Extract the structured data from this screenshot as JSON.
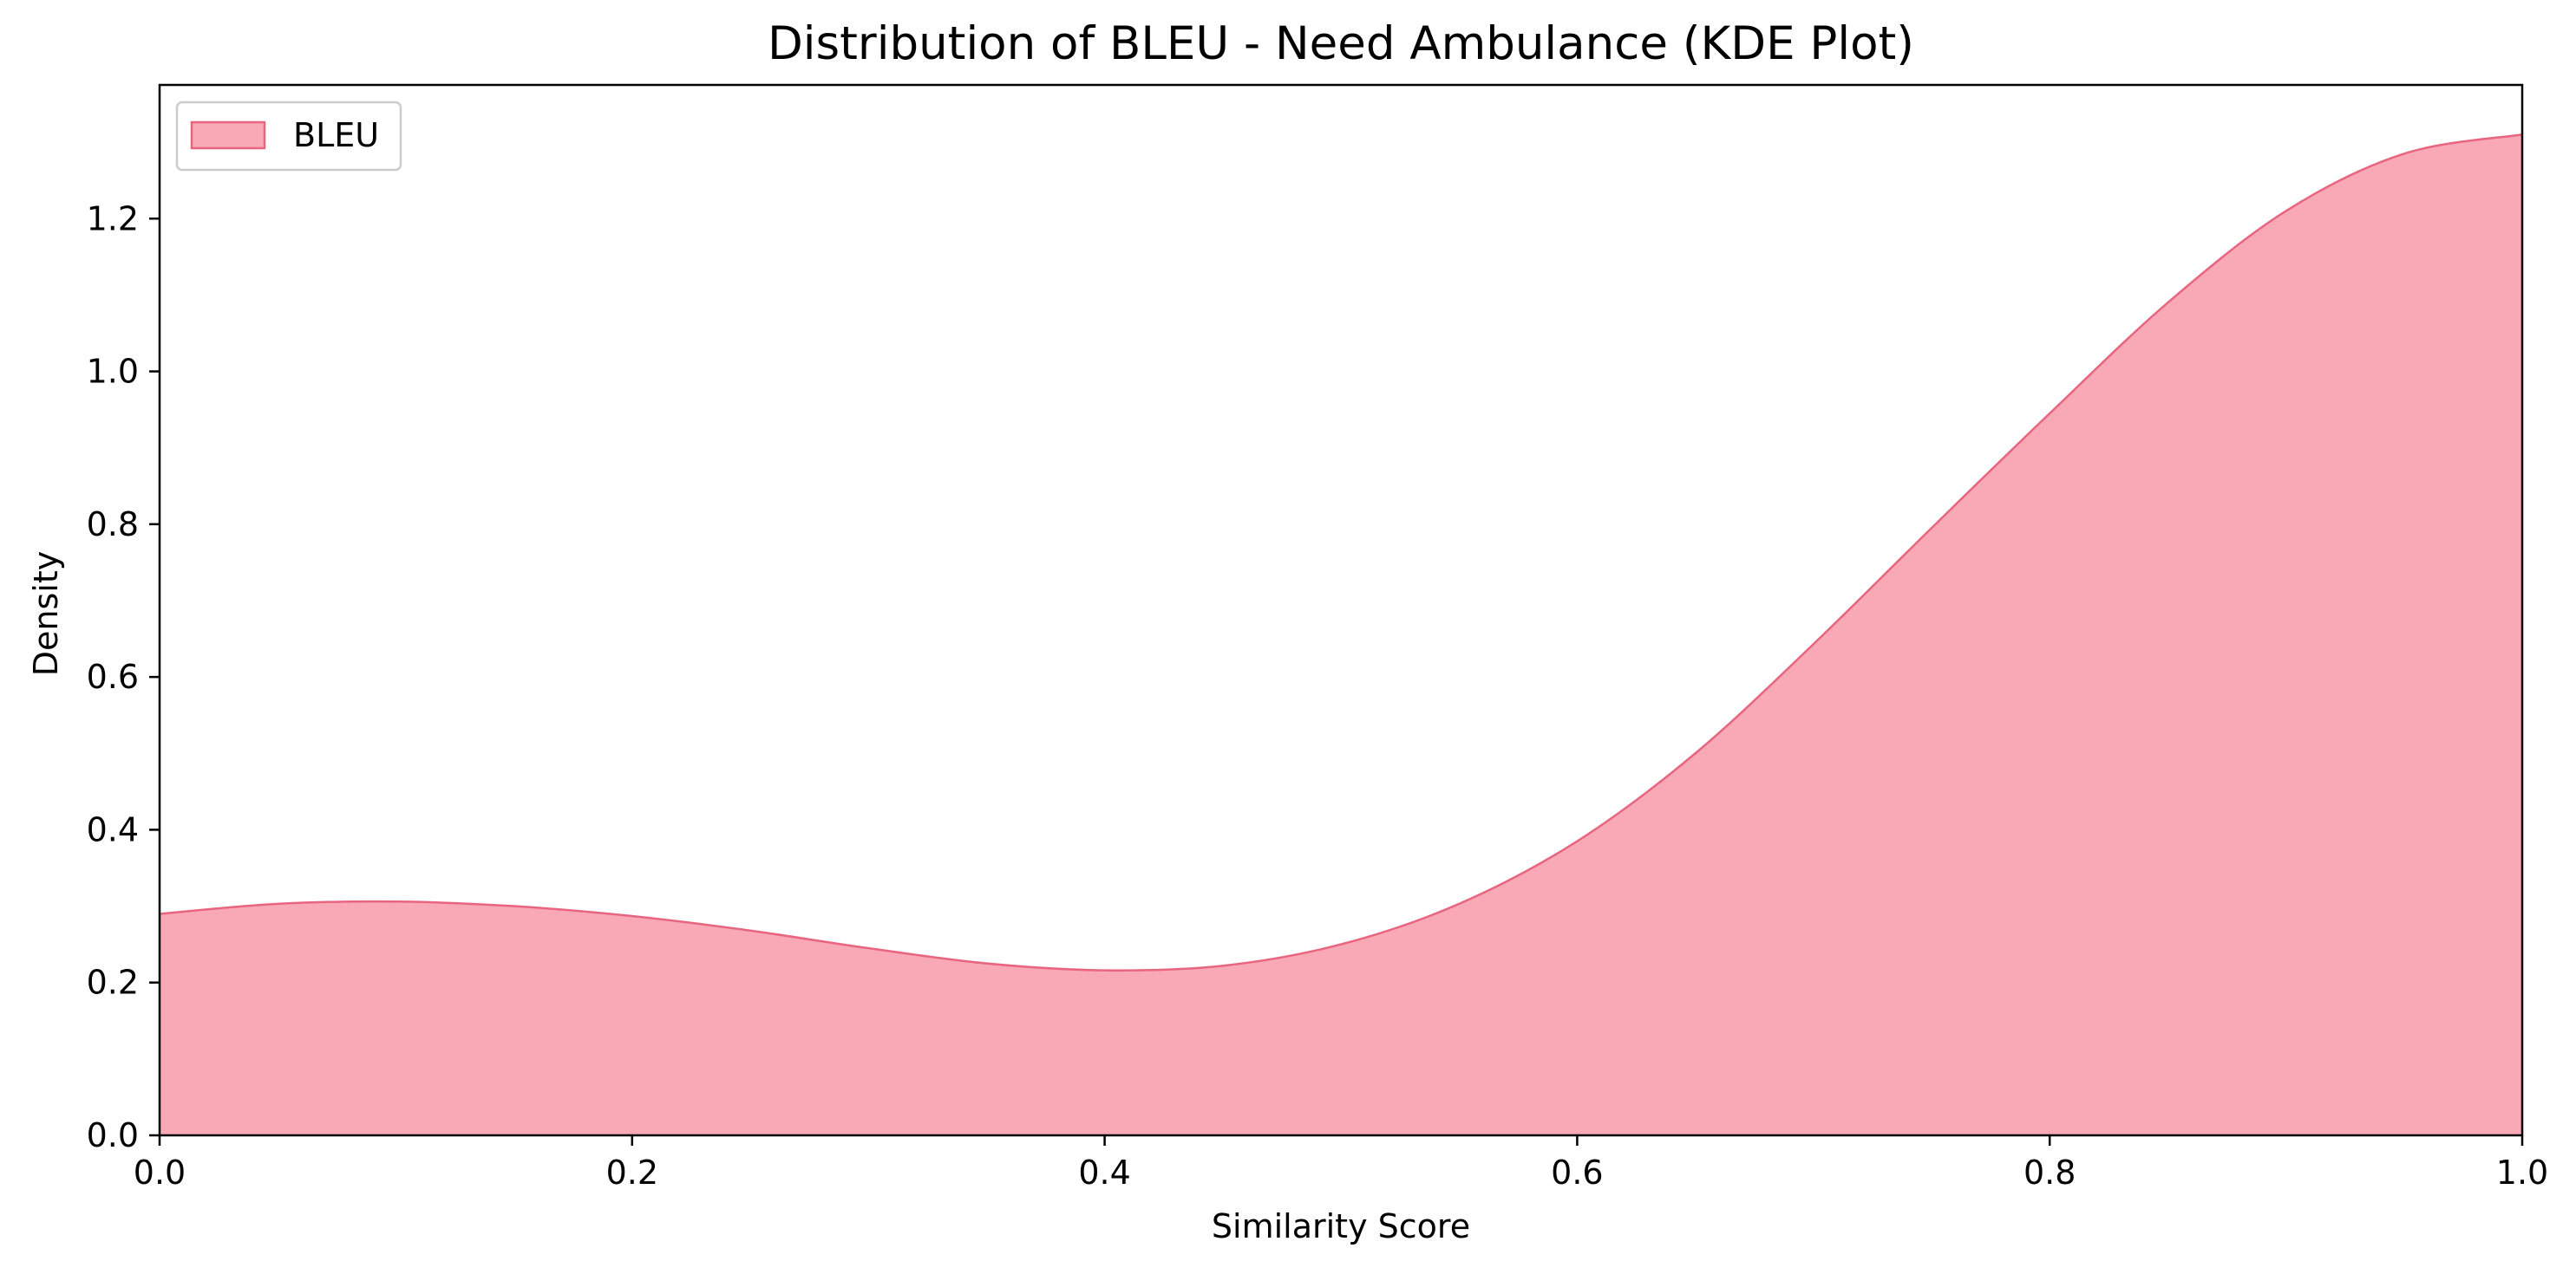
{
  "chart_data": {
    "type": "area",
    "title": "Distribution of BLEU - Need Ambulance (KDE Plot)",
    "xlabel": "Similarity Score",
    "ylabel": "Density",
    "xlim": [
      0.0,
      1.0
    ],
    "ylim": [
      0.0,
      1.375
    ],
    "x_ticks": [
      "0.0",
      "0.2",
      "0.4",
      "0.6",
      "0.8",
      "1.0"
    ],
    "y_ticks": [
      "0.0",
      "0.2",
      "0.4",
      "0.6",
      "0.8",
      "1.0",
      "1.2"
    ],
    "grid": false,
    "legend": {
      "position": "top-left"
    },
    "series": [
      {
        "name": "BLEU",
        "fill_color": "#f9a8b6",
        "line_color": "#e8657f",
        "x": [
          0.0,
          0.05,
          0.1,
          0.15,
          0.2,
          0.25,
          0.3,
          0.35,
          0.4,
          0.45,
          0.5,
          0.55,
          0.6,
          0.65,
          0.7,
          0.75,
          0.8,
          0.85,
          0.9,
          0.95,
          1.0
        ],
        "y": [
          0.29,
          0.303,
          0.306,
          0.3,
          0.287,
          0.268,
          0.245,
          0.225,
          0.216,
          0.222,
          0.25,
          0.303,
          0.385,
          0.5,
          0.643,
          0.795,
          0.945,
          1.09,
          1.21,
          1.285,
          1.31
        ]
      }
    ]
  }
}
